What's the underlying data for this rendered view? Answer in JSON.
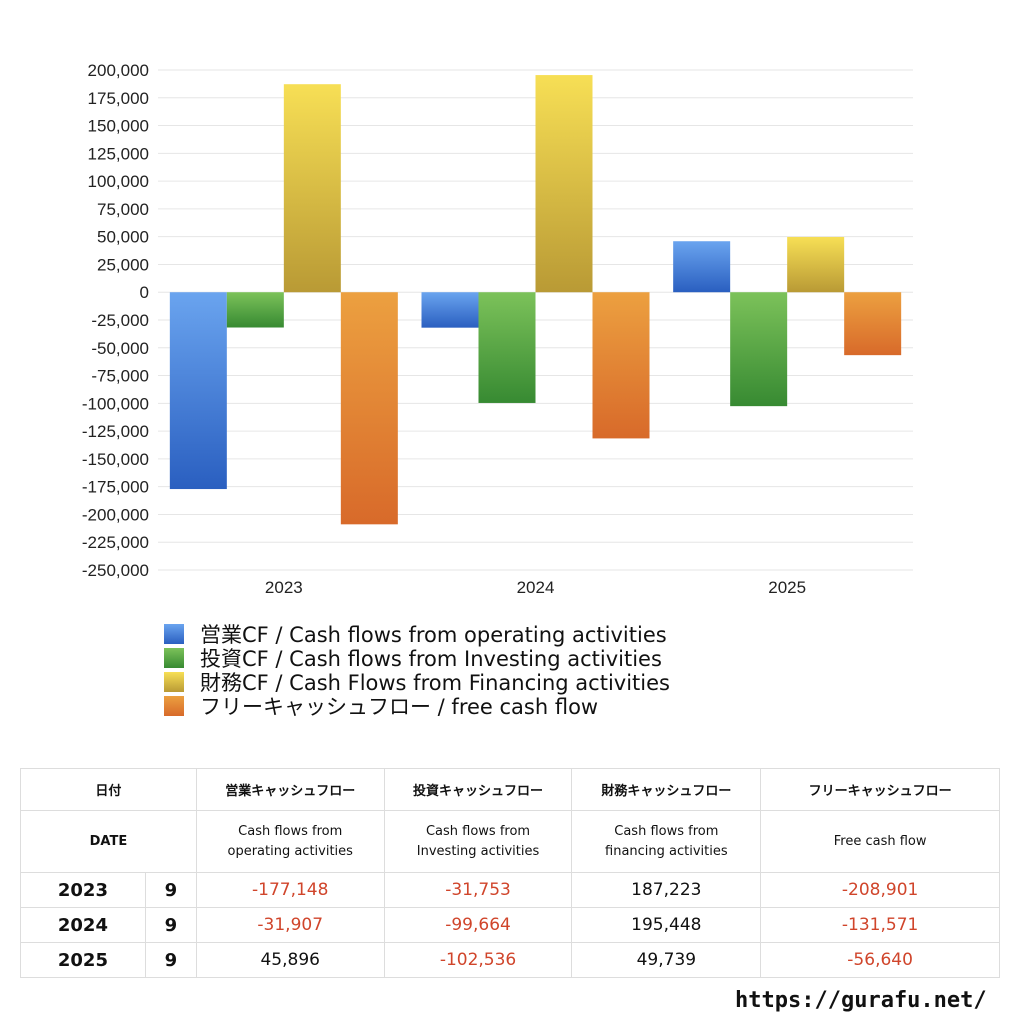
{
  "chart_data": {
    "type": "bar",
    "categories": [
      "2023",
      "2024",
      "2025"
    ],
    "series": [
      {
        "name": "営業CF / Cash flows from operating activities",
        "values": [
          -177148,
          -31907,
          45896
        ],
        "color_top": "#6aa4ef",
        "color_bottom": "#2a5fc0"
      },
      {
        "name": "投資CF / Cash flows from Investing activities",
        "values": [
          -31753,
          -99664,
          -102536
        ],
        "color_top": "#7cc25a",
        "color_bottom": "#378a32"
      },
      {
        "name": "財務CF / Cash Flows from Financing activities",
        "values": [
          187223,
          195448,
          49739
        ],
        "color_top": "#f7df55",
        "color_bottom": "#b99a35"
      },
      {
        "name": "フリーキャッシュフロー / free cash flow",
        "values": [
          -208901,
          -131571,
          -56640
        ],
        "color_top": "#eca040",
        "color_bottom": "#d86a2a"
      }
    ],
    "ylim": [
      -250000,
      200000
    ],
    "ytick_step": 25000,
    "yticks": [
      "200,000",
      "175,000",
      "150,000",
      "125,000",
      "100,000",
      "75,000",
      "50,000",
      "25,000",
      "0",
      "-25,000",
      "-50,000",
      "-75,000",
      "-100,000",
      "-125,000",
      "-150,000",
      "-175,000",
      "-200,000",
      "-225,000",
      "-250,000"
    ],
    "grid": true,
    "legend_position": "bottom"
  },
  "table": {
    "header_jp": [
      "日付",
      "営業キャッシュフロー",
      "投資キャッシュフロー",
      "財務キャッシュフロー",
      "フリーキャッシュフロー"
    ],
    "header_en": {
      "date": "DATE",
      "operating": [
        "Cash flows from",
        "operating activities"
      ],
      "investing": [
        "Cash flows from",
        "Investing activities"
      ],
      "financing": [
        "Cash flows from",
        "financing activities"
      ],
      "free": "Free cash flow"
    },
    "rows": [
      {
        "year": "2023",
        "month": "9",
        "operating": "-177,148",
        "investing": "-31,753",
        "financing": "187,223",
        "free": "-208,901"
      },
      {
        "year": "2024",
        "month": "9",
        "operating": "-31,907",
        "investing": "-99,664",
        "financing": "195,448",
        "free": "-131,571"
      },
      {
        "year": "2025",
        "month": "9",
        "operating": "45,896",
        "investing": "-102,536",
        "financing": "49,739",
        "free": "-56,640"
      }
    ]
  },
  "footer": {
    "url": "https://gurafu.net/"
  }
}
